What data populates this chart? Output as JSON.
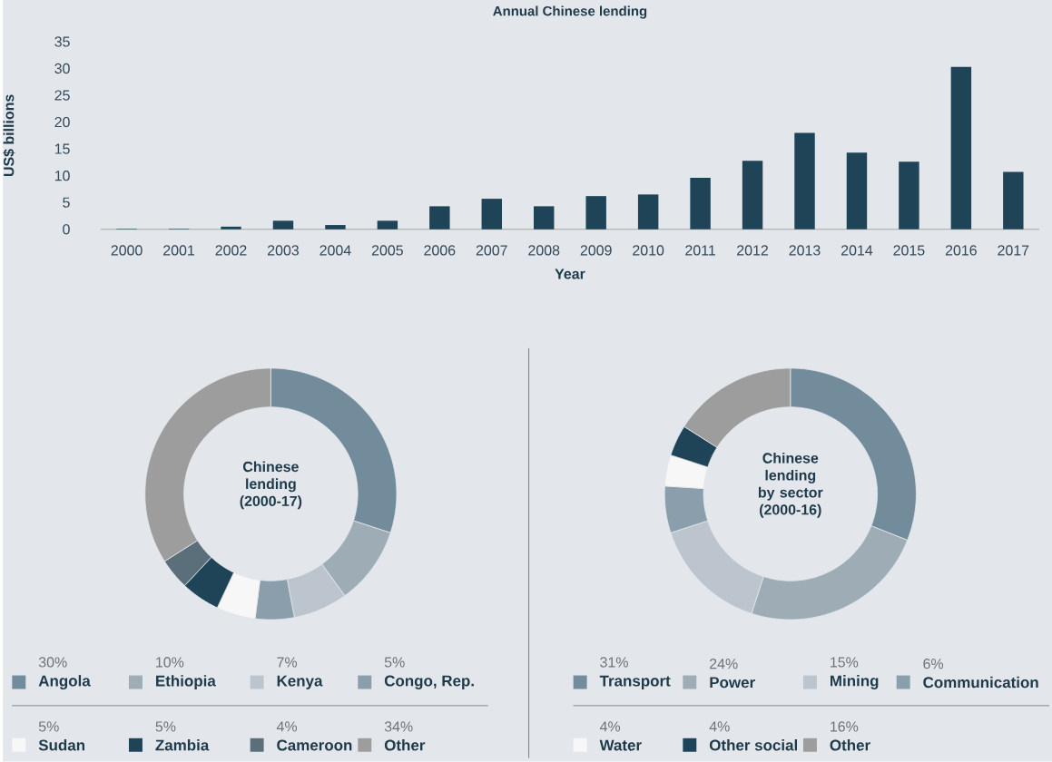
{
  "chart_data": [
    {
      "type": "bar",
      "title": "Annual Chinese lending",
      "xlabel": "Year",
      "ylabel": "US$ billions",
      "categories": [
        "2000",
        "2001",
        "2002",
        "2003",
        "2004",
        "2005",
        "2006",
        "2007",
        "2008",
        "2009",
        "2010",
        "2011",
        "2012",
        "2013",
        "2014",
        "2015",
        "2016",
        "2017"
      ],
      "values": [
        0.1,
        0.1,
        0.5,
        1.6,
        0.8,
        1.6,
        4.3,
        5.7,
        4.3,
        6.2,
        6.5,
        9.6,
        12.8,
        18.0,
        14.3,
        12.6,
        30.3,
        10.7
      ],
      "color": "#1f4457",
      "ylim": [
        0,
        35
      ],
      "yticks": [
        0,
        5,
        10,
        15,
        20,
        25,
        30,
        35
      ]
    },
    {
      "type": "donut",
      "title": "Chinese lending (2000-17)",
      "categories": [
        "Angola",
        "Ethiopia",
        "Kenya",
        "Congo, Rep.",
        "Sudan",
        "Zambia",
        "Cameroon",
        "Other"
      ],
      "values": [
        30,
        10,
        7,
        5,
        5,
        5,
        4,
        34
      ],
      "colors": [
        "#728c9b",
        "#9eacb6",
        "#bcc5cd",
        "#8a9eab",
        "#f7f7f7",
        "#1f4457",
        "#5b6f7b",
        "#9d9d9d"
      ],
      "value_labels": [
        "30%",
        "10%",
        "7%",
        "5%",
        "5%",
        "5%",
        "4%",
        "34%"
      ],
      "legend": "bottom"
    },
    {
      "type": "donut",
      "title": "Chinese lending by sector (2000-16)",
      "categories": [
        "Transport",
        "Power",
        "Mining",
        "Communication",
        "Water",
        "Other social",
        "Other"
      ],
      "values": [
        31,
        24,
        15,
        6,
        4,
        4,
        16
      ],
      "colors": [
        "#728c9b",
        "#9eacb6",
        "#bcc5cd",
        "#8a9eab",
        "#f7f7f7",
        "#1f4457",
        "#9d9d9d"
      ],
      "value_labels": [
        "31%",
        "24%",
        "15%",
        "6%",
        "4%",
        "4%",
        "16%"
      ],
      "legend": "bottom"
    }
  ]
}
